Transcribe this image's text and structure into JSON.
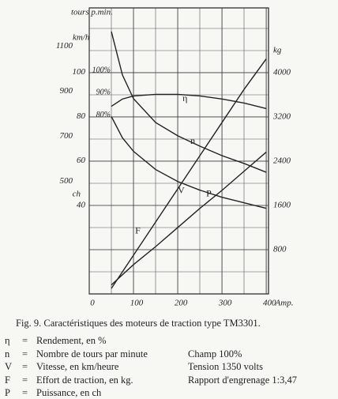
{
  "chart_data": {
    "type": "line",
    "y_label": "tours p.min.",
    "y_kmh_label": "km/h",
    "y2_label": "kg",
    "y_ch_label": "ch",
    "x_unit": "Amp.",
    "xlim": [
      0,
      405
    ],
    "xticks": [
      0,
      100,
      200,
      300,
      400
    ],
    "ylim": [
      0,
      1270
    ],
    "yticks": [
      500,
      700,
      900,
      1100
    ],
    "y_kmh_lim": [
      0,
      129
    ],
    "y_kmh_ticks": [
      40,
      60,
      80,
      100
    ],
    "y_eta_lim": [
      0,
      129
    ],
    "y_eta_ticks": [
      {
        "value": 100,
        "label": "100%"
      },
      {
        "value": 90,
        "label": "90%"
      },
      {
        "value": 80,
        "label": "80%"
      }
    ],
    "y_ch_lim": [
      0,
      1270
    ],
    "y2lim": [
      0,
      5170
    ],
    "y2ticks": [
      800,
      1600,
      2400,
      3200,
      4000
    ],
    "grid": true,
    "x": [
      50,
      75,
      100,
      150,
      200,
      250,
      300,
      350,
      400
    ],
    "series": [
      {
        "name": "n",
        "axis": "y",
        "color": "#222",
        "values": [
          1165,
          972,
          867,
          761,
          702,
          656,
          614,
          579,
          540
        ]
      },
      {
        "name": "η",
        "axis": "y_eta",
        "color": "#222",
        "values": [
          84.6,
          87.9,
          89.3,
          90,
          90,
          89.3,
          87.9,
          86.1,
          83.6
        ]
      },
      {
        "name": "V",
        "axis": "y_kmh",
        "color": "#222",
        "values": [
          80,
          70.4,
          64.3,
          56.1,
          50.7,
          46.8,
          43.6,
          41.1,
          38.6
        ]
      },
      {
        "name": "F",
        "axis": "y2",
        "color": "#222",
        "values": [
          100,
          400,
          700,
          1300,
          1900,
          2500,
          3100,
          3700,
          4250
        ]
      },
      {
        "name": "P",
        "axis": "y_ch",
        "color": "#222",
        "values": [
          40,
          85,
          130,
          210,
          295,
          380,
          460,
          545,
          630
        ]
      }
    ]
  },
  "caption": "Fig. 9. Caractéristiques des moteurs de traction type TM3301.",
  "legend": [
    {
      "symbol": "η",
      "sep": "=",
      "text": "Rendement, en %",
      "note": null
    },
    {
      "symbol": "n",
      "sep": "=",
      "text": "Nombre de tours par minute",
      "note": "Champ 100%"
    },
    {
      "symbol": "V",
      "sep": "=",
      "text": "Vitesse, en km/heure",
      "note": "Tension 1350 volts"
    },
    {
      "symbol": "F",
      "sep": "=",
      "text": "Effort de traction, en kg.",
      "note": "Rapport d'engrenage 1:3,47"
    },
    {
      "symbol": "P",
      "sep": "=",
      "text": "Puissance, en ch",
      "note": null
    }
  ]
}
